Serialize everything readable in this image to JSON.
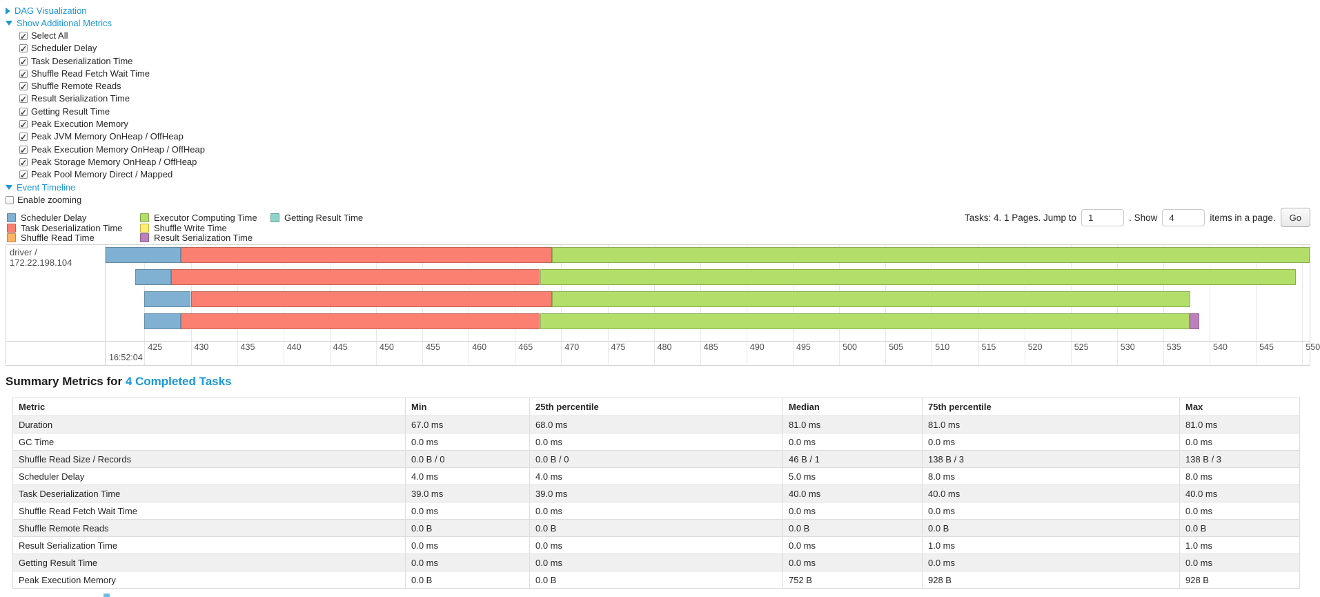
{
  "colors": {
    "link": "#1b98d8",
    "scheduler_delay": "#80B1D3",
    "task_deserialization": "#FB8072",
    "shuffle_read": "#FDB462",
    "executor_computing": "#B3DE69",
    "shuffle_write": "#FFED6F",
    "result_serialization": "#BC80BD",
    "getting_result": "#8DD3C7",
    "alt_row": "#f0f0f0",
    "border": "#d4d4d4"
  },
  "toggles": {
    "dag": "DAG Visualization",
    "additional_metrics": "Show Additional Metrics",
    "event_timeline": "Event Timeline"
  },
  "metrics_panel": {
    "options": [
      "Select All",
      "Scheduler Delay",
      "Task Deserialization Time",
      "Shuffle Read Fetch Wait Time",
      "Shuffle Remote Reads",
      "Result Serialization Time",
      "Getting Result Time",
      "Peak Execution Memory",
      "Peak JVM Memory OnHeap / OffHeap",
      "Peak Execution Memory OnHeap / OffHeap",
      "Peak Storage Memory OnHeap / OffHeap",
      "Peak Pool Memory Direct / Mapped"
    ],
    "all_checked": true
  },
  "enable_zooming": {
    "label": "Enable zooming",
    "checked": false
  },
  "legend": {
    "columns": [
      [
        {
          "label": "Scheduler Delay",
          "key": "scheduler_delay"
        },
        {
          "label": "Task Deserialization Time",
          "key": "task_deserialization"
        },
        {
          "label": "Shuffle Read Time",
          "key": "shuffle_read"
        }
      ],
      [
        {
          "label": "Executor Computing Time",
          "key": "executor_computing"
        },
        {
          "label": "Shuffle Write Time",
          "key": "shuffle_write"
        },
        {
          "label": "Result Serialization Time",
          "key": "result_serialization"
        }
      ],
      [
        {
          "label": "Getting Result Time",
          "key": "getting_result"
        }
      ]
    ]
  },
  "pager": {
    "summary": "Tasks: 4. 1 Pages. Jump to",
    "jump_value": "1",
    "between": ". Show",
    "page_size_value": "4",
    "suffix": "items in a page.",
    "go_label": "Go"
  },
  "chart_data": {
    "type": "timeline",
    "title": "Event Timeline",
    "group_label": "driver / 172.22.198.104",
    "x_unit": "milliseconds within second 16:52:04",
    "axis": {
      "min": 420.8,
      "max": 550.8,
      "tick_step": 5,
      "ticks": [
        425,
        430,
        435,
        440,
        445,
        450,
        455,
        460,
        465,
        470,
        475,
        480,
        485,
        490,
        495,
        500,
        505,
        510,
        515,
        520,
        525,
        530,
        535,
        540,
        545,
        550
      ],
      "major_label": "16:52:04",
      "grid": true
    },
    "tasks": [
      {
        "segments": [
          {
            "key": "scheduler_delay",
            "start": 420.8,
            "end": 428.9
          },
          {
            "key": "task_deserialization",
            "start": 428.9,
            "end": 469.0
          },
          {
            "key": "executor_computing",
            "start": 469.0,
            "end": 550.8
          }
        ]
      },
      {
        "segments": [
          {
            "key": "scheduler_delay",
            "start": 424.0,
            "end": 427.9
          },
          {
            "key": "task_deserialization",
            "start": 427.9,
            "end": 467.7
          },
          {
            "key": "executor_computing",
            "start": 467.7,
            "end": 549.3
          }
        ]
      },
      {
        "segments": [
          {
            "key": "scheduler_delay",
            "start": 425.0,
            "end": 430.0
          },
          {
            "key": "task_deserialization",
            "start": 430.0,
            "end": 469.0
          },
          {
            "key": "executor_computing",
            "start": 469.0,
            "end": 537.9
          }
        ]
      },
      {
        "segments": [
          {
            "key": "scheduler_delay",
            "start": 425.0,
            "end": 428.9
          },
          {
            "key": "task_deserialization",
            "start": 428.9,
            "end": 467.7
          },
          {
            "key": "executor_computing",
            "start": 467.7,
            "end": 537.8
          },
          {
            "key": "result_serialization",
            "start": 537.8,
            "end": 538.9
          }
        ]
      }
    ]
  },
  "summary": {
    "heading_prefix": "Summary Metrics for ",
    "heading_link": "4 Completed Tasks"
  },
  "summary_table": {
    "columns": [
      "Metric",
      "Min",
      "25th percentile",
      "Median",
      "75th percentile",
      "Max"
    ],
    "rows": [
      [
        "Duration",
        "67.0 ms",
        "68.0 ms",
        "81.0 ms",
        "81.0 ms",
        "81.0 ms"
      ],
      [
        "GC Time",
        "0.0 ms",
        "0.0 ms",
        "0.0 ms",
        "0.0 ms",
        "0.0 ms"
      ],
      [
        "Shuffle Read Size / Records",
        "0.0 B / 0",
        "0.0 B / 0",
        "46 B / 1",
        "138 B / 3",
        "138 B / 3"
      ],
      [
        "Scheduler Delay",
        "4.0 ms",
        "4.0 ms",
        "5.0 ms",
        "8.0 ms",
        "8.0 ms"
      ],
      [
        "Task Deserialization Time",
        "39.0 ms",
        "39.0 ms",
        "40.0 ms",
        "40.0 ms",
        "40.0 ms"
      ],
      [
        "Shuffle Read Fetch Wait Time",
        "0.0 ms",
        "0.0 ms",
        "0.0 ms",
        "0.0 ms",
        "0.0 ms"
      ],
      [
        "Shuffle Remote Reads",
        "0.0 B",
        "0.0 B",
        "0.0 B",
        "0.0 B",
        "0.0 B"
      ],
      [
        "Result Serialization Time",
        "0.0 ms",
        "0.0 ms",
        "0.0 ms",
        "1.0 ms",
        "1.0 ms"
      ],
      [
        "Getting Result Time",
        "0.0 ms",
        "0.0 ms",
        "0.0 ms",
        "0.0 ms",
        "0.0 ms"
      ],
      [
        "Peak Execution Memory",
        "0.0 B",
        "0.0 B",
        "752 B",
        "928 B",
        "928 B"
      ]
    ]
  }
}
